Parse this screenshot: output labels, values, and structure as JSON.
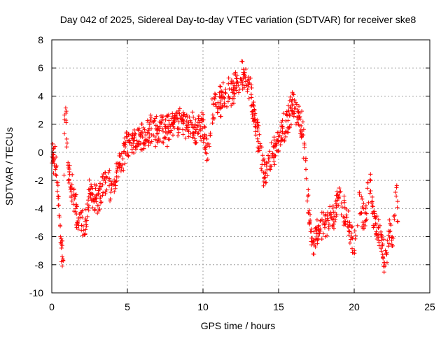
{
  "chart_data": {
    "type": "scatter",
    "title": "Day 042 of 2025, Sidereal Day-to-day VTEC variation (SDTVAR) for receiver ske8",
    "xlabel": "GPS time / hours",
    "ylabel": "SDTVAR / TECUs",
    "xlim": [
      0,
      25
    ],
    "ylim": [
      -10,
      8
    ],
    "xticks": [
      0,
      5,
      10,
      15,
      20,
      25
    ],
    "yticks": [
      -10,
      -8,
      -6,
      -4,
      -2,
      0,
      2,
      4,
      6,
      8
    ],
    "grid": true,
    "marker": "+",
    "color": "#ff0000",
    "series": [
      {
        "name": "SDTVAR",
        "trend": [
          [
            0.0,
            0.0
          ],
          [
            0.3,
            -0.8
          ],
          [
            0.6,
            -6.5
          ],
          [
            0.75,
            -8.0
          ],
          [
            0.85,
            3.8
          ],
          [
            0.95,
            2.0
          ],
          [
            1.1,
            -1.5
          ],
          [
            1.7,
            -4.5
          ],
          [
            2.2,
            -5.5
          ],
          [
            2.5,
            -2.5
          ],
          [
            3.0,
            -3.5
          ],
          [
            3.5,
            -2.0
          ],
          [
            4.0,
            -2.5
          ],
          [
            4.5,
            -1.0
          ],
          [
            5.0,
            0.5
          ],
          [
            5.5,
            1.0
          ],
          [
            6.0,
            1.0
          ],
          [
            6.5,
            1.5
          ],
          [
            7.0,
            1.5
          ],
          [
            7.5,
            1.5
          ],
          [
            8.0,
            1.8
          ],
          [
            8.5,
            2.5
          ],
          [
            9.0,
            2.0
          ],
          [
            9.5,
            1.5
          ],
          [
            10.0,
            2.0
          ],
          [
            10.3,
            0.0
          ],
          [
            10.6,
            3.0
          ],
          [
            11.0,
            3.5
          ],
          [
            11.5,
            4.0
          ],
          [
            12.0,
            4.5
          ],
          [
            12.5,
            5.5
          ],
          [
            13.0,
            5.0
          ],
          [
            13.5,
            2.0
          ],
          [
            14.0,
            -1.5
          ],
          [
            14.5,
            -0.5
          ],
          [
            15.0,
            1.0
          ],
          [
            15.5,
            2.0
          ],
          [
            16.0,
            3.5
          ],
          [
            16.5,
            2.0
          ],
          [
            16.8,
            -0.5
          ],
          [
            17.0,
            -4.5
          ],
          [
            17.3,
            -6.5
          ],
          [
            17.7,
            -5.5
          ],
          [
            18.2,
            -5.0
          ],
          [
            18.7,
            -4.5
          ],
          [
            19.0,
            -3.0
          ],
          [
            19.3,
            -4.0
          ],
          [
            19.7,
            -5.5
          ],
          [
            20.0,
            -6.5
          ],
          [
            20.3,
            -3.5
          ],
          [
            20.7,
            -5.0
          ],
          [
            21.0,
            -2.0
          ],
          [
            21.3,
            -4.5
          ],
          [
            21.6,
            -5.5
          ],
          [
            22.0,
            -7.5
          ],
          [
            22.3,
            -6.0
          ],
          [
            22.6,
            -5.5
          ],
          [
            22.8,
            -3.0
          ],
          [
            22.9,
            -4.5
          ]
        ]
      }
    ]
  }
}
